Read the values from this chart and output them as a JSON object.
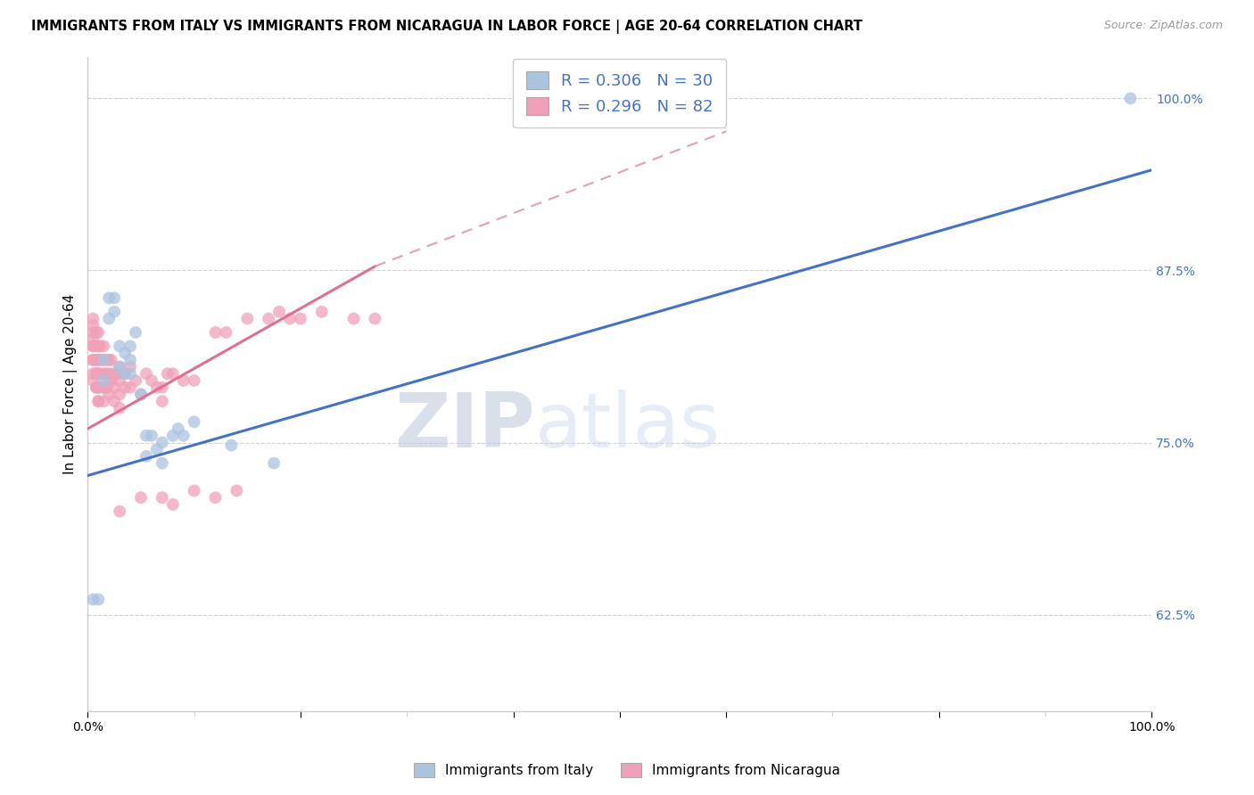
{
  "title": "IMMIGRANTS FROM ITALY VS IMMIGRANTS FROM NICARAGUA IN LABOR FORCE | AGE 20-64 CORRELATION CHART",
  "source": "Source: ZipAtlas.com",
  "ylabel": "In Labor Force | Age 20-64",
  "y_ticks_labels": [
    "62.5%",
    "75.0%",
    "87.5%",
    "100.0%"
  ],
  "y_ticks_vals": [
    0.625,
    0.75,
    0.875,
    1.0
  ],
  "x_lim": [
    0.0,
    1.0
  ],
  "y_lim": [
    0.555,
    1.03
  ],
  "italy_color": "#aac4e0",
  "nicaragua_color": "#f0a0b8",
  "italy_line_color": "#4472c4",
  "nicaragua_line_color": "#e07090",
  "nicaragua_line_dash_color": "#e0a0b8",
  "watermark_zip": "ZIP",
  "watermark_atlas": "atlas",
  "italy_scatter_x": [
    0.005,
    0.01,
    0.015,
    0.015,
    0.02,
    0.02,
    0.025,
    0.025,
    0.03,
    0.03,
    0.035,
    0.035,
    0.04,
    0.04,
    0.04,
    0.045,
    0.05,
    0.055,
    0.055,
    0.06,
    0.065,
    0.07,
    0.07,
    0.08,
    0.085,
    0.09,
    0.1,
    0.135,
    0.175,
    0.98
  ],
  "italy_scatter_y": [
    0.636,
    0.636,
    0.795,
    0.81,
    0.855,
    0.84,
    0.845,
    0.855,
    0.805,
    0.82,
    0.8,
    0.815,
    0.82,
    0.81,
    0.8,
    0.83,
    0.785,
    0.74,
    0.755,
    0.755,
    0.745,
    0.735,
    0.75,
    0.755,
    0.76,
    0.755,
    0.765,
    0.748,
    0.735,
    1.0
  ],
  "nicaragua_scatter_x": [
    0.005,
    0.005,
    0.005,
    0.005,
    0.005,
    0.005,
    0.005,
    0.005,
    0.005,
    0.005,
    0.008,
    0.008,
    0.008,
    0.008,
    0.008,
    0.008,
    0.008,
    0.01,
    0.01,
    0.01,
    0.01,
    0.01,
    0.01,
    0.01,
    0.012,
    0.012,
    0.012,
    0.012,
    0.015,
    0.015,
    0.015,
    0.015,
    0.015,
    0.018,
    0.018,
    0.018,
    0.02,
    0.02,
    0.02,
    0.02,
    0.022,
    0.022,
    0.025,
    0.025,
    0.025,
    0.028,
    0.03,
    0.03,
    0.03,
    0.03,
    0.035,
    0.035,
    0.04,
    0.04,
    0.045,
    0.05,
    0.055,
    0.06,
    0.065,
    0.07,
    0.07,
    0.075,
    0.08,
    0.09,
    0.1,
    0.12,
    0.13,
    0.15,
    0.17,
    0.18,
    0.19,
    0.2,
    0.22,
    0.25,
    0.27,
    0.03,
    0.05,
    0.07,
    0.08,
    0.1,
    0.12,
    0.14
  ],
  "nicaragua_scatter_y": [
    0.795,
    0.8,
    0.81,
    0.82,
    0.825,
    0.83,
    0.835,
    0.84,
    0.82,
    0.81,
    0.79,
    0.8,
    0.81,
    0.82,
    0.83,
    0.79,
    0.8,
    0.78,
    0.79,
    0.8,
    0.81,
    0.82,
    0.83,
    0.78,
    0.79,
    0.8,
    0.81,
    0.82,
    0.78,
    0.79,
    0.8,
    0.81,
    0.82,
    0.79,
    0.8,
    0.81,
    0.785,
    0.795,
    0.8,
    0.81,
    0.795,
    0.81,
    0.78,
    0.79,
    0.8,
    0.8,
    0.775,
    0.785,
    0.795,
    0.805,
    0.79,
    0.8,
    0.79,
    0.805,
    0.795,
    0.785,
    0.8,
    0.795,
    0.79,
    0.78,
    0.79,
    0.8,
    0.8,
    0.795,
    0.795,
    0.83,
    0.83,
    0.84,
    0.84,
    0.845,
    0.84,
    0.84,
    0.845,
    0.84,
    0.84,
    0.7,
    0.71,
    0.71,
    0.705,
    0.715,
    0.71,
    0.715
  ],
  "italy_line_x0": 0.0,
  "italy_line_y0": 0.726,
  "italy_line_x1": 1.0,
  "italy_line_y1": 0.948,
  "nic_line_solid_x0": 0.0,
  "nic_line_solid_y0": 0.76,
  "nic_line_solid_x1": 0.27,
  "nic_line_solid_y1": 0.878,
  "nic_line_dash_x0": 0.27,
  "nic_line_dash_y0": 0.878,
  "nic_line_dash_x1": 0.6,
  "nic_line_dash_y1": 0.976
}
